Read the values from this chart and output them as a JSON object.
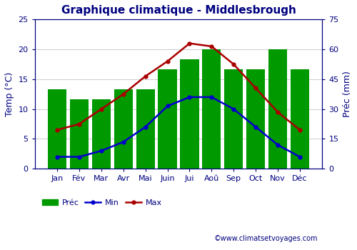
{
  "title": "Graphique climatique - Middlesbrough",
  "months": [
    "Jan",
    "Fév",
    "Mar",
    "Avr",
    "Mai",
    "Juin",
    "Jui",
    "Aoû",
    "Sep",
    "Oct",
    "Nov",
    "Déc"
  ],
  "precip": [
    40,
    35,
    35,
    40,
    40,
    50,
    55,
    60,
    50,
    50,
    60,
    50
  ],
  "temp_min": [
    2.0,
    2.0,
    3.0,
    4.5,
    7.0,
    10.5,
    12.0,
    12.0,
    10.0,
    7.0,
    4.0,
    2.0
  ],
  "temp_max": [
    6.5,
    7.5,
    10.0,
    12.5,
    15.5,
    18.0,
    21.0,
    20.5,
    17.5,
    13.5,
    9.5,
    6.5
  ],
  "bar_color": "#009900",
  "min_color": "#0000cc",
  "max_color": "#aa0000",
  "ylabel_left": "Temp (°C)",
  "ylabel_right": "Préc (mm)",
  "temp_ylim": [
    0,
    25
  ],
  "precip_ylim": [
    0,
    75
  ],
  "temp_yticks": [
    0,
    5,
    10,
    15,
    20,
    25
  ],
  "precip_yticks": [
    0,
    15,
    30,
    45,
    60,
    75
  ],
  "grid_color": "#cccccc",
  "background_color": "#ffffff",
  "watermark": "©www.climatsetvoyages.com",
  "title_fontsize": 11,
  "axis_label_fontsize": 9,
  "tick_fontsize": 8,
  "legend_fontsize": 8,
  "watermark_fontsize": 7
}
